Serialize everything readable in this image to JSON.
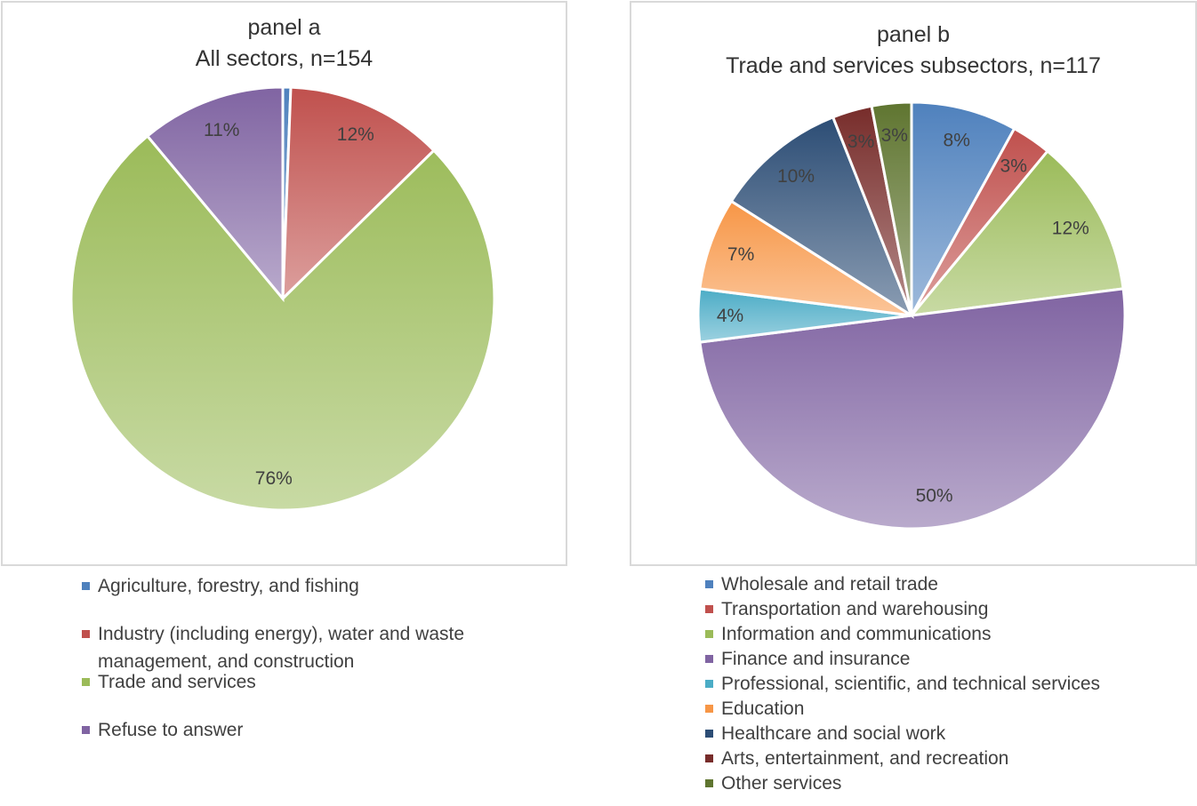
{
  "chart_data": [
    {
      "type": "pie",
      "title": "panel a\nAll sectors, n=154",
      "title_lines": [
        "panel a",
        "All sectors, n=154"
      ],
      "slices": [
        {
          "label": "Agriculture, forestry, and fishing",
          "value": 0.6,
          "data_label": "",
          "color": "#4f81bd"
        },
        {
          "label": "Industry (including energy), water and waste management, and construction",
          "label_lines": [
            "Industry (including energy), water and waste",
            "management, and construction"
          ],
          "value": 12,
          "data_label": "12%",
          "color": "#c0504d"
        },
        {
          "label": "Trade and services",
          "value": 76,
          "data_label": "76%",
          "color": "#9bbb59"
        },
        {
          "label": "Refuse to answer",
          "value": 11,
          "data_label": "11%",
          "color": "#8064a2"
        }
      ],
      "legend_position": "bottom"
    },
    {
      "type": "pie",
      "title": "panel b\nTrade and services subsectors, n=117",
      "title_lines": [
        "panel b",
        "Trade and services subsectors, n=117"
      ],
      "slices": [
        {
          "label": "Wholesale and retail trade",
          "value": 8,
          "data_label": "8%",
          "color": "#4f81bd"
        },
        {
          "label": "Transportation and warehousing",
          "value": 3,
          "data_label": "3%",
          "color": "#c0504d"
        },
        {
          "label": "Information and communications",
          "value": 12,
          "data_label": "12%",
          "color": "#9bbb59"
        },
        {
          "label": "Finance and insurance",
          "value": 50,
          "data_label": "50%",
          "color": "#8064a2"
        },
        {
          "label": "Professional, scientific, and technical services",
          "value": 4,
          "data_label": "4%",
          "color": "#4bacc6"
        },
        {
          "label": "Education",
          "value": 7,
          "data_label": "7%",
          "color": "#f79646"
        },
        {
          "label": "Healthcare and social work",
          "value": 10,
          "data_label": "10%",
          "color": "#2c4d75"
        },
        {
          "label": "Arts, entertainment, and recreation",
          "value": 3,
          "data_label": "3%",
          "color": "#772c2a"
        },
        {
          "label": "Other services",
          "value": 3,
          "data_label": "3%",
          "color": "#5f7530"
        }
      ],
      "legend_position": "bottom"
    }
  ]
}
